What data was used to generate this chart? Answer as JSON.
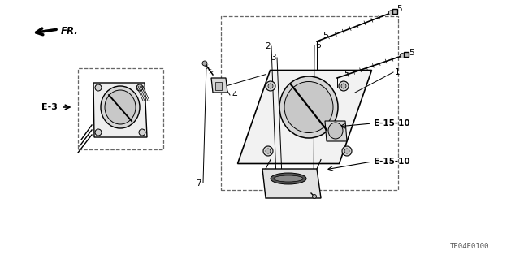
{
  "bg_color": "#ffffff",
  "part_code": "TE04E0100",
  "line_color": "#000000",
  "dashed_color": "#666666",
  "gray_fill": "#e8e8e8",
  "light_gray": "#f2f2f2",
  "labels": {
    "E3": "E-3",
    "E1510a": "E-15-10",
    "E1510b": "E-15-10",
    "FR": "FR.",
    "part1": "1",
    "part2": "2",
    "part3": "3",
    "part4": "4",
    "part5a": "5",
    "part5b": "5",
    "part5c": "5",
    "part5d": "5",
    "part6": "6",
    "part7": "7"
  }
}
